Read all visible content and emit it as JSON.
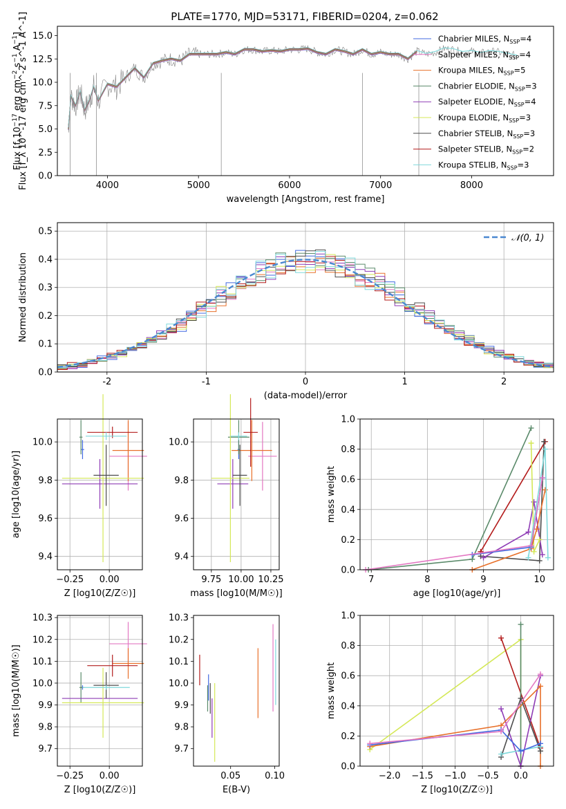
{
  "figure": {
    "title": "PLATE=1770, MJD=53171, FIBERID=0204, z=0.062"
  },
  "chart_data": [
    {
      "id": "spectrum",
      "type": "line",
      "xlabel": "wavelength [Angstrom, rest frame]",
      "ylabel": "Flux [f_λ 10^-17 erg cm^-2 s^-1 A^-1]",
      "xlim": [
        3450,
        8900
      ],
      "ylim": [
        0,
        16
      ],
      "xticks": [
        4000,
        5000,
        6000,
        7000,
        8000
      ],
      "yticks": [
        0.0,
        2.5,
        5.0,
        7.5,
        10.0,
        12.5,
        15.0
      ],
      "grid": false,
      "legend_position": "right",
      "data_series": {
        "name": "data",
        "color": "#808080",
        "x": [
          3570,
          3600,
          3650,
          3700,
          3750,
          3800,
          3850,
          3900,
          4000,
          4100,
          4200,
          4300,
          4400,
          4500,
          4600,
          4700,
          4800,
          4900,
          5000,
          5100,
          5200,
          5300,
          5400,
          5500,
          5600,
          5700,
          5800,
          5900,
          6000,
          6100,
          6200,
          6300,
          6400,
          6500,
          6600,
          6700,
          6800,
          6900,
          7000,
          7100,
          7200,
          7300,
          7400,
          7500,
          7600,
          7700,
          7800,
          7900,
          8000,
          8100,
          8200,
          8300,
          8400,
          8500
        ],
        "y": [
          5.0,
          8.5,
          7.5,
          9.0,
          7.0,
          8.0,
          9.5,
          8.0,
          9.8,
          9.5,
          10.5,
          11.5,
          10.5,
          12.0,
          12.3,
          12.5,
          12.3,
          13.0,
          13.0,
          13.0,
          13.0,
          13.2,
          13.0,
          13.5,
          13.5,
          13.3,
          13.4,
          13.3,
          13.5,
          13.5,
          13.6,
          13.2,
          13.0,
          13.5,
          13.3,
          13.0,
          13.5,
          13.0,
          13.2,
          13.0,
          13.0,
          12.5,
          13.3,
          13.0,
          13.2,
          13.6,
          13.5,
          13.2,
          13.3,
          13.1,
          13.3,
          13.2,
          13.0,
          12.8
        ]
      },
      "model_series": [
        {
          "name": "Chabrier MILES, N_SSP=4",
          "label_main": "Chabrier MILES, N",
          "label_tail": "=4",
          "color": "#4169E1"
        },
        {
          "name": "Salpeter MILES, N_SSP=4",
          "label_main": "Salpeter MILES, N",
          "label_tail": "=4",
          "color": "#E377C2"
        },
        {
          "name": "Kroupa MILES, N_SSP=5",
          "label_main": "Kroupa MILES, N",
          "label_tail": "=5",
          "color": "#E8702A"
        },
        {
          "name": "Chabrier ELODIE, N_SSP=3",
          "label_main": "Chabrier ELODIE, N",
          "label_tail": "=3",
          "color": "#5A8A6A"
        },
        {
          "name": "Salpeter ELODIE, N_SSP=4",
          "label_main": "Salpeter ELODIE, N",
          "label_tail": "=4",
          "color": "#8E3BB5"
        },
        {
          "name": "Kroupa ELODIE, N_SSP=3",
          "label_main": "Kroupa ELODIE, N",
          "label_tail": "=3",
          "color": "#D4E857"
        },
        {
          "name": "Chabrier STELIB, N_SSP=3",
          "label_main": "Chabrier STELIB, N",
          "label_tail": "=3",
          "color": "#4D4D4D"
        },
        {
          "name": "Salpeter STELIB, N_SSP=2",
          "label_main": "Salpeter STELIB, N",
          "label_tail": "=2",
          "color": "#B31B1B"
        },
        {
          "name": "Kroupa STELIB, N_SSP=3",
          "label_main": "Kroupa STELIB, N",
          "label_tail": "=3",
          "color": "#7FD9DB"
        }
      ],
      "subscript": "SSP"
    },
    {
      "id": "residuals",
      "type": "histogram",
      "xlabel": "(data-model)/error",
      "ylabel": "Normed distribution",
      "xlim": [
        -2.5,
        2.5
      ],
      "ylim": [
        0,
        0.53
      ],
      "xticks": [
        -2,
        -1,
        0,
        1,
        2
      ],
      "yticks": [
        0.0,
        0.1,
        0.2,
        0.3,
        0.4,
        0.5
      ],
      "grid": true,
      "gaussian_label": "𝒩(0, 1)",
      "gaussian_color": "#4A88D0",
      "bin_edges_start": -2.5,
      "bin_width": 0.1,
      "gaussian_values": [
        0.018,
        0.022,
        0.028,
        0.035,
        0.044,
        0.054,
        0.066,
        0.079,
        0.094,
        0.111,
        0.13,
        0.15,
        0.171,
        0.194,
        0.218,
        0.242,
        0.266,
        0.29,
        0.312,
        0.333,
        0.352,
        0.368,
        0.381,
        0.391,
        0.397,
        0.399,
        0.397,
        0.391,
        0.381,
        0.368,
        0.352,
        0.333,
        0.312,
        0.29,
        0.266,
        0.242,
        0.218,
        0.194,
        0.171,
        0.15,
        0.13,
        0.111,
        0.094,
        0.079,
        0.066,
        0.054,
        0.044,
        0.035,
        0.028,
        0.022
      ]
    },
    {
      "id": "age-vs-Z",
      "type": "scatter-errorbar",
      "xlabel": "Z [log10(Z/Z☉)]",
      "ylabel": "age [log10(age/yr)]",
      "xlim": [
        -0.33,
        0.21
      ],
      "ylim": [
        9.33,
        10.12
      ],
      "xticks": [
        -0.25,
        0.0
      ],
      "xtick_labels": [
        "−0.25",
        "0.00"
      ],
      "yticks": [
        9.4,
        9.6,
        9.8,
        10.0
      ],
      "ytick_labels": [
        "9.4",
        "9.6",
        "9.8",
        "10.0"
      ],
      "grid": true,
      "points": [
        {
          "x": -0.17,
          "y": 9.96,
          "ex": 0.01,
          "ey": 0.05,
          "color": "#4169E1"
        },
        {
          "x": 0.12,
          "y": 9.925,
          "ex": 0.12,
          "ey": 0.18,
          "color": "#E377C2"
        },
        {
          "x": 0.12,
          "y": 9.955,
          "ex": 0.1,
          "ey": 0.16,
          "color": "#E8702A"
        },
        {
          "x": -0.18,
          "y": 10.025,
          "ex": 0.01,
          "ey": 0.09,
          "color": "#5A8A6A"
        },
        {
          "x": -0.06,
          "y": 9.78,
          "ex": 0.24,
          "ey": 0.13,
          "color": "#8E3BB5"
        },
        {
          "x": -0.04,
          "y": 9.81,
          "ex": 0.26,
          "ey": 0.44,
          "color": "#D4E857"
        },
        {
          "x": -0.02,
          "y": 9.825,
          "ex": 0.08,
          "ey": 0.16,
          "color": "#4D4D4D"
        },
        {
          "x": 0.02,
          "y": 10.05,
          "ex": 0.16,
          "ey": 0.03,
          "color": "#B31B1B"
        },
        {
          "x": -0.02,
          "y": 10.03,
          "ex": 0.13,
          "ey": 0.02,
          "color": "#7FD9DB"
        }
      ]
    },
    {
      "id": "age-vs-mass",
      "type": "scatter-errorbar",
      "xlabel": "mass [log10(M/M☉)]",
      "ylabel": "",
      "xlim": [
        9.6,
        10.32
      ],
      "ylim": [
        9.33,
        10.12
      ],
      "xticks": [
        9.75,
        10.0,
        10.25
      ],
      "xtick_labels": [
        "9.75",
        "10.00",
        "10.25"
      ],
      "yticks": [
        9.4,
        9.6,
        9.8,
        10.0
      ],
      "ytick_labels": [
        "9.4",
        "9.6",
        "9.8",
        "10.0"
      ],
      "grid": true,
      "points": [
        {
          "x": 9.98,
          "y": 9.96,
          "ex": 0.01,
          "ey": 0.05,
          "color": "#4169E1"
        },
        {
          "x": 10.18,
          "y": 9.925,
          "ex": 0.12,
          "ey": 0.18,
          "color": "#E377C2"
        },
        {
          "x": 10.09,
          "y": 9.955,
          "ex": 0.17,
          "ey": 0.16,
          "color": "#E8702A"
        },
        {
          "x": 9.98,
          "y": 10.025,
          "ex": 0.09,
          "ey": 0.09,
          "color": "#5A8A6A"
        },
        {
          "x": 9.93,
          "y": 9.78,
          "ex": 0.13,
          "ey": 0.13,
          "color": "#8E3BB5"
        },
        {
          "x": 9.91,
          "y": 9.81,
          "ex": 0.16,
          "ey": 0.44,
          "color": "#D4E857"
        },
        {
          "x": 9.99,
          "y": 9.825,
          "ex": 0.06,
          "ey": 0.16,
          "color": "#4D4D4D"
        },
        {
          "x": 10.08,
          "y": 10.05,
          "ex": 0.06,
          "ey": 0.18,
          "color": "#B31B1B"
        },
        {
          "x": 9.98,
          "y": 10.03,
          "ex": 0.07,
          "ey": 0.02,
          "color": "#7FD9DB"
        }
      ]
    },
    {
      "id": "mass-weight-vs-age",
      "type": "line",
      "xlabel": "age [log10(age/yr)]",
      "ylabel": "mass weight",
      "xlim": [
        6.8,
        10.25
      ],
      "ylim": [
        0,
        1
      ],
      "xticks": [
        7,
        8,
        9,
        10
      ],
      "xtick_labels": [
        "7",
        "8",
        "9",
        "10"
      ],
      "yticks": [
        0.0,
        0.2,
        0.4,
        0.6,
        0.8,
        1.0
      ],
      "ytick_labels": [
        "0.0",
        "0.2",
        "0.4",
        "0.6",
        "0.8",
        "1.0"
      ],
      "grid": true,
      "series": [
        {
          "color": "#5A8A6A",
          "x": [
            6.95,
            8.8,
            9.85
          ],
          "y": [
            0.0,
            0.07,
            0.94
          ]
        },
        {
          "color": "#B31B1B",
          "x": [
            8.95,
            10.1
          ],
          "y": [
            0.12,
            0.85
          ]
        },
        {
          "color": "#4D4D4D",
          "x": [
            8.95,
            10.0,
            10.08
          ],
          "y": [
            0.09,
            0.06,
            0.85
          ]
        },
        {
          "color": "#8E3BB5",
          "x": [
            9.0,
            9.8,
            9.9,
            10.05
          ],
          "y": [
            0.08,
            0.25,
            0.45,
            0.1
          ]
        },
        {
          "color": "#D4E857",
          "x": [
            9.85,
            9.9,
            10.0
          ],
          "y": [
            0.84,
            0.12,
            0.2
          ]
        },
        {
          "color": "#E8702A",
          "x": [
            8.8,
            9.85,
            9.95,
            10.1
          ],
          "y": [
            0.0,
            0.14,
            0.27,
            0.53
          ]
        },
        {
          "color": "#7FD9DB",
          "x": [
            9.8,
            10.1,
            10.15
          ],
          "y": [
            0.08,
            0.8,
            0.08
          ]
        },
        {
          "color": "#4169E1",
          "x": [
            8.8,
            9.85,
            10.05
          ],
          "y": [
            0.1,
            0.15,
            0.61
          ]
        },
        {
          "color": "#E377C2",
          "x": [
            6.9,
            9.85,
            10.05
          ],
          "y": [
            0.0,
            0.16,
            0.61
          ]
        }
      ]
    },
    {
      "id": "mass-vs-Z",
      "type": "scatter-errorbar",
      "xlabel": "Z [log10(Z/Z☉)]",
      "ylabel": "mass [log10(M/M☉)]",
      "xlim": [
        -0.33,
        0.21
      ],
      "ylim": [
        9.62,
        10.31
      ],
      "xticks": [
        -0.25,
        0.0
      ],
      "xtick_labels": [
        "−0.25",
        "0.00"
      ],
      "yticks": [
        9.7,
        9.8,
        9.9,
        10.0,
        10.1,
        10.2,
        10.3
      ],
      "ytick_labels": [
        "9.7",
        "9.8",
        "9.9",
        "10.0",
        "10.1",
        "10.2",
        "10.3"
      ],
      "grid": true,
      "points": [
        {
          "x": -0.17,
          "y": 9.98,
          "ex": 0.01,
          "ey": 0.01,
          "color": "#4169E1"
        },
        {
          "x": 0.12,
          "y": 10.18,
          "ex": 0.12,
          "ey": 0.1,
          "color": "#E377C2"
        },
        {
          "x": 0.12,
          "y": 10.09,
          "ex": 0.1,
          "ey": 0.07,
          "color": "#E8702A"
        },
        {
          "x": -0.18,
          "y": 9.98,
          "ex": 0.01,
          "ey": 0.07,
          "color": "#5A8A6A"
        },
        {
          "x": -0.06,
          "y": 9.93,
          "ex": 0.24,
          "ey": 0.0,
          "color": "#8E3BB5"
        },
        {
          "x": -0.04,
          "y": 9.91,
          "ex": 0.26,
          "ey": 0.16,
          "color": "#D4E857"
        },
        {
          "x": -0.02,
          "y": 9.99,
          "ex": 0.08,
          "ey": 0.06,
          "color": "#4D4D4D"
        },
        {
          "x": 0.02,
          "y": 10.08,
          "ex": 0.16,
          "ey": 0.05,
          "color": "#B31B1B"
        },
        {
          "x": -0.02,
          "y": 9.98,
          "ex": 0.15,
          "ey": 0.01,
          "color": "#7FD9DB"
        }
      ]
    },
    {
      "id": "mass-vs-EBV",
      "type": "errorbar",
      "xlabel": "E(B-V)",
      "ylabel": "",
      "xlim": [
        0.008,
        0.105
      ],
      "ylim": [
        9.62,
        10.31
      ],
      "xticks": [
        0.05,
        0.1
      ],
      "xtick_labels": [
        "0.05",
        "0.10"
      ],
      "yticks": [
        9.7,
        9.8,
        9.9,
        10.0,
        10.1,
        10.2,
        10.3
      ],
      "ytick_labels": [
        "9.7",
        "9.8",
        "9.9",
        "10.0",
        "10.1",
        "10.2",
        "10.3"
      ],
      "grid": false,
      "points": [
        {
          "x": 0.025,
          "y": 9.98,
          "ey": 0.06,
          "color": "#4169E1"
        },
        {
          "x": 0.098,
          "y": 10.07,
          "ey": 0.2,
          "color": "#E377C2"
        },
        {
          "x": 0.081,
          "y": 10.0,
          "ey": 0.16,
          "color": "#E8702A"
        },
        {
          "x": 0.024,
          "y": 9.93,
          "ey": 0.06,
          "color": "#5A8A6A"
        },
        {
          "x": 0.029,
          "y": 9.84,
          "ey": 0.09,
          "color": "#8E3BB5"
        },
        {
          "x": 0.032,
          "y": 9.82,
          "ey": 0.18,
          "color": "#D4E857"
        },
        {
          "x": 0.027,
          "y": 9.93,
          "ey": 0.07,
          "color": "#4D4D4D"
        },
        {
          "x": 0.015,
          "y": 10.06,
          "ey": 0.07,
          "color": "#B31B1B"
        },
        {
          "x": 0.101,
          "y": 10.05,
          "ey": 0.15,
          "color": "#7FD9DB"
        }
      ]
    },
    {
      "id": "mass-weight-vs-Z",
      "type": "line",
      "xlabel": "Z [log10(Z/Z☉)]",
      "ylabel": "mass weight",
      "xlim": [
        -2.45,
        0.5
      ],
      "ylim": [
        0,
        1
      ],
      "xticks": [
        -2.0,
        -1.5,
        -1.0,
        -0.5,
        0.0
      ],
      "xtick_labels": [
        "−2.0",
        "−1.5",
        "−1.0",
        "−0.5",
        "0.0"
      ],
      "yticks": [
        0.0,
        0.2,
        0.4,
        0.6,
        0.8,
        1.0
      ],
      "ytick_labels": [
        "0.0",
        "0.2",
        "0.4",
        "0.6",
        "0.8",
        "1.0"
      ],
      "grid": true,
      "series": [
        {
          "color": "#D4E857",
          "x": [
            -2.3,
            0.0,
            0.0
          ],
          "y": [
            0.11,
            0.84,
            0.0
          ]
        },
        {
          "color": "#B31B1B",
          "x": [
            -0.3,
            0.3
          ],
          "y": [
            0.85,
            0.12
          ]
        },
        {
          "color": "#5A8A6A",
          "x": [
            0.0,
            0.0
          ],
          "y": [
            0.94,
            0.0
          ]
        },
        {
          "color": "#8E3BB5",
          "x": [
            -0.3,
            0.0,
            0.3
          ],
          "y": [
            0.38,
            0.0,
            0.6
          ]
        },
        {
          "color": "#E8702A",
          "x": [
            -2.3,
            -0.3,
            0.3,
            0.3
          ],
          "y": [
            0.13,
            0.27,
            0.53,
            0.0
          ]
        },
        {
          "color": "#4D4D4D",
          "x": [
            -0.3,
            0.0,
            0.3
          ],
          "y": [
            0.06,
            0.45,
            0.1
          ]
        },
        {
          "color": "#7FD9DB",
          "x": [
            -0.3,
            0.3
          ],
          "y": [
            0.08,
            0.13
          ]
        },
        {
          "color": "#4169E1",
          "x": [
            -2.3,
            -0.3,
            0.0,
            0.3
          ],
          "y": [
            0.14,
            0.24,
            0.1,
            0.15
          ]
        },
        {
          "color": "#E377C2",
          "x": [
            -2.3,
            -0.3,
            0.3
          ],
          "y": [
            0.15,
            0.23,
            0.61
          ]
        }
      ]
    }
  ]
}
